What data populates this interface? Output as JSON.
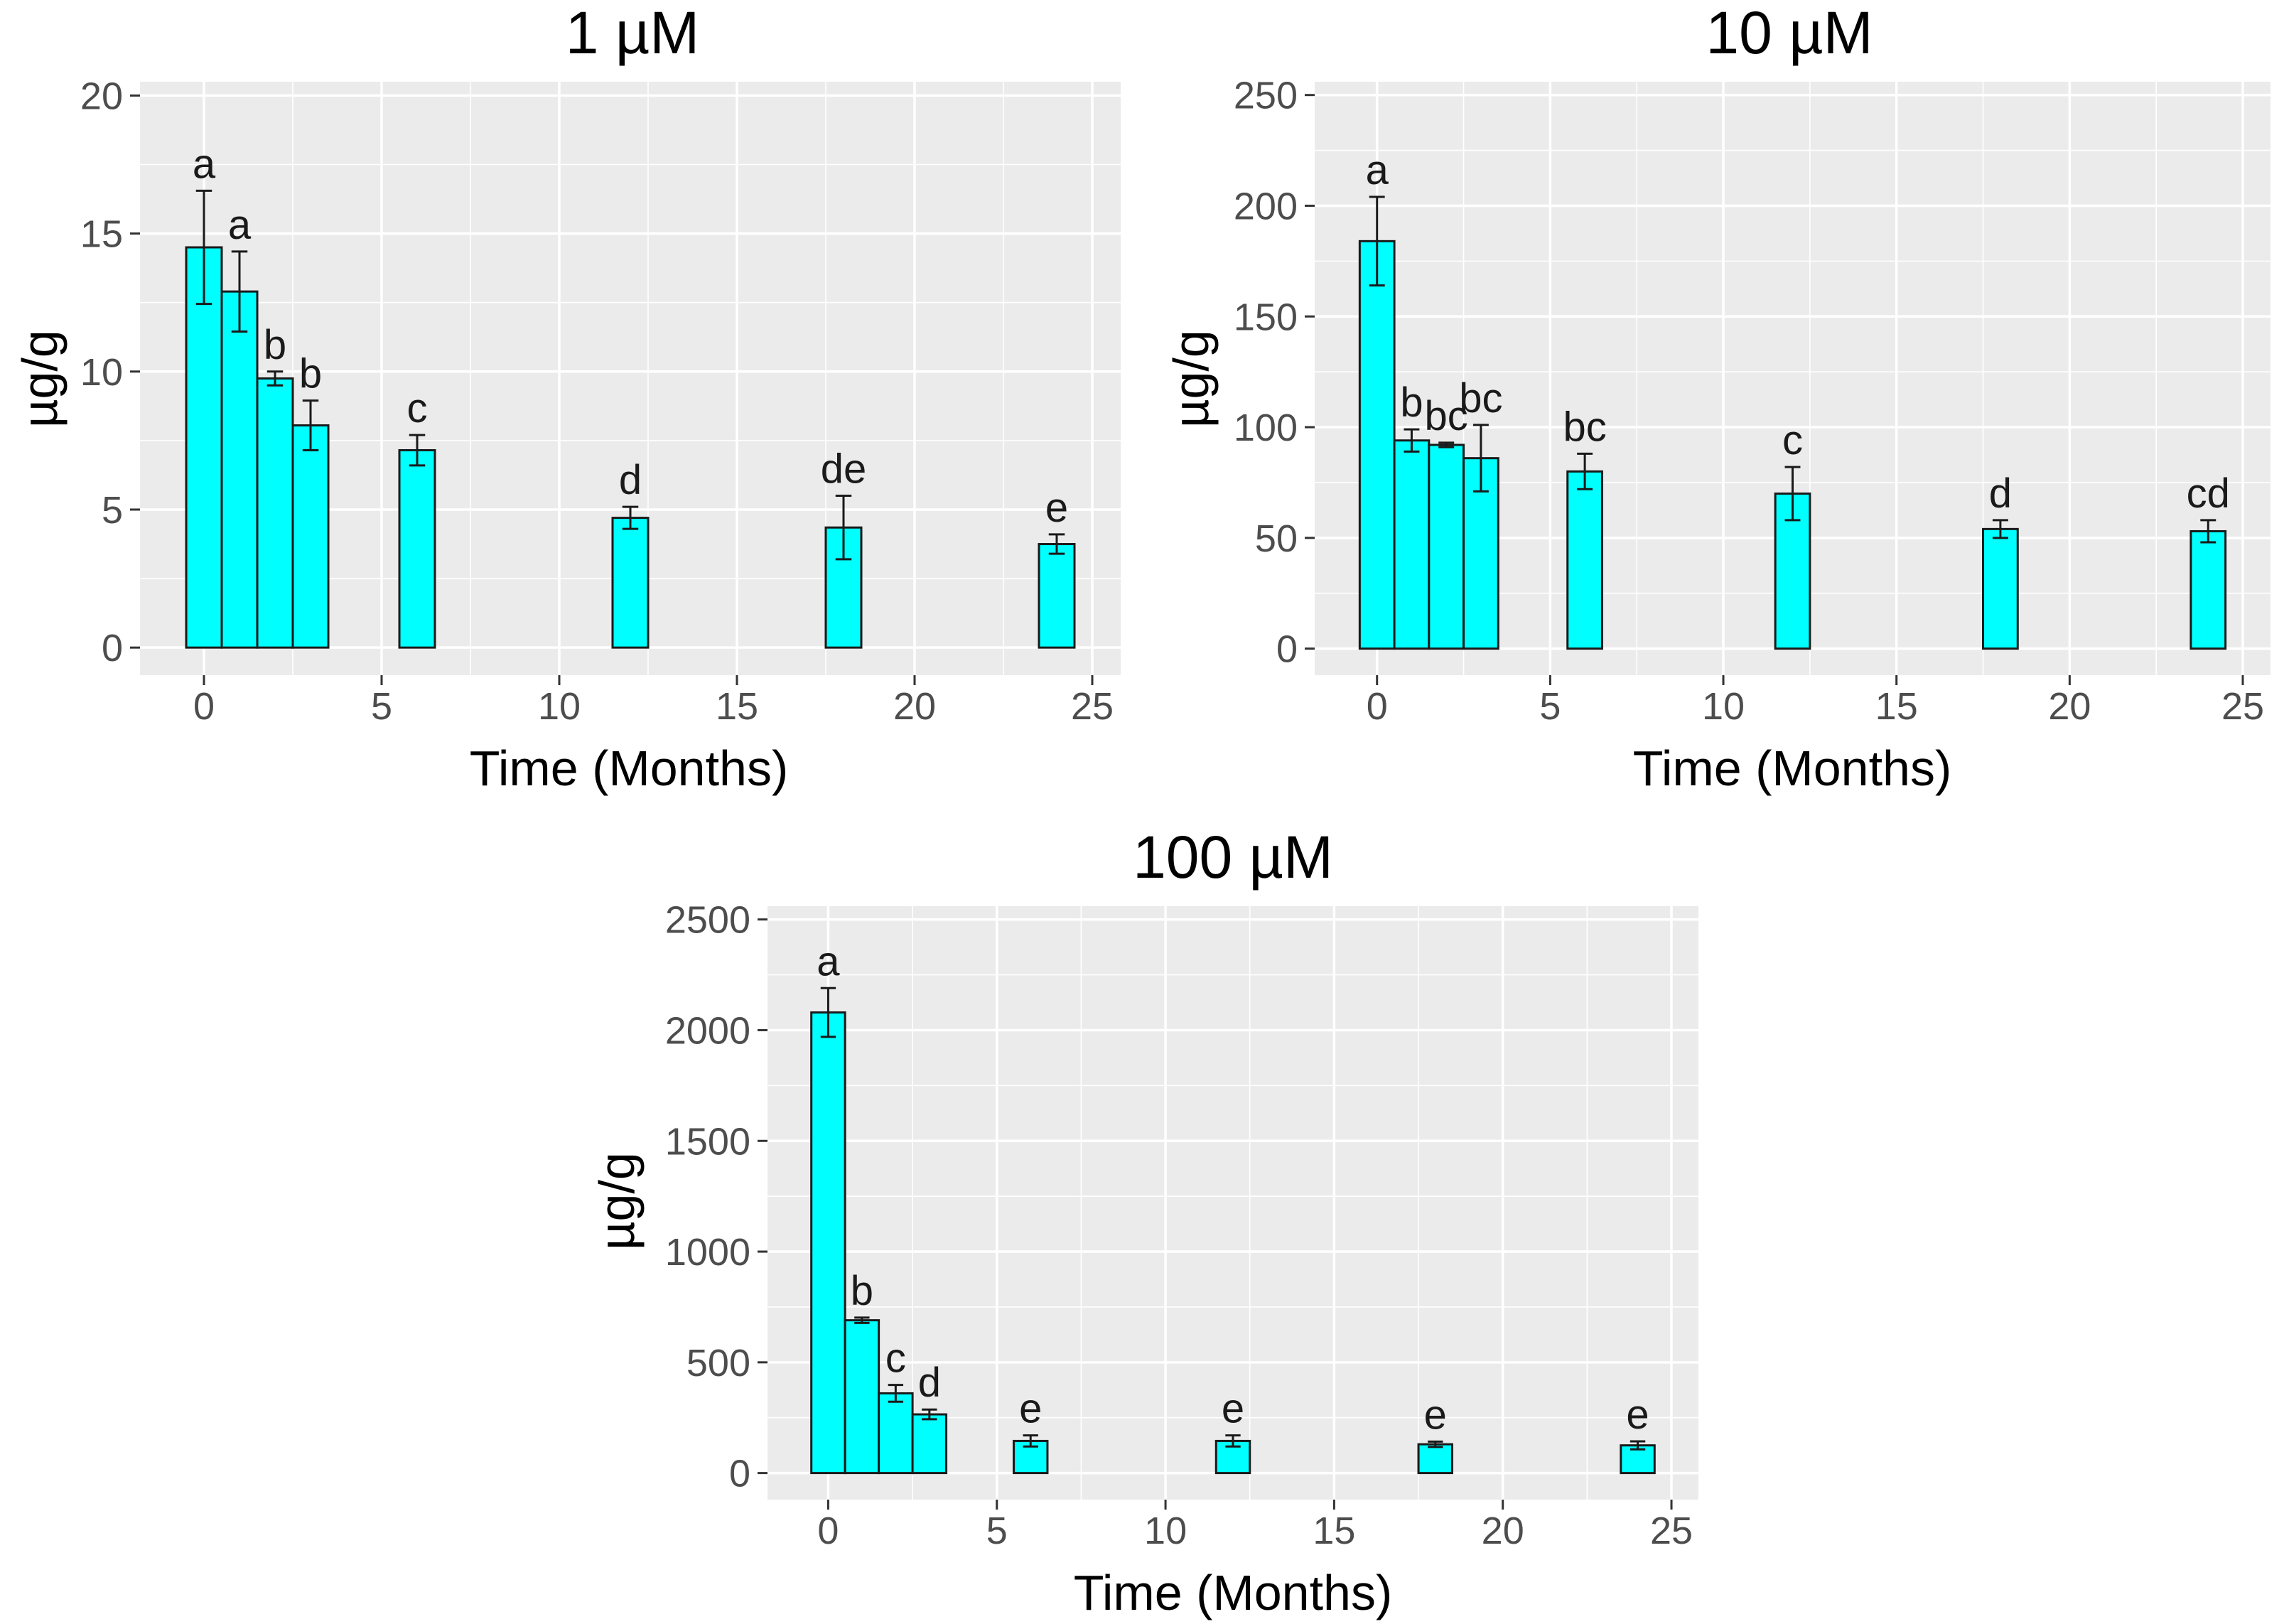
{
  "chart_data": [
    {
      "type": "bar",
      "title": "1 µM",
      "xlabel": "Time (Months)",
      "ylabel": "µg/g",
      "xlim": [
        -1.8,
        25.8
      ],
      "ylim": [
        -1,
        20.5
      ],
      "x_ticks": [
        0,
        5,
        10,
        15,
        20,
        25
      ],
      "y_ticks": [
        0,
        5,
        10,
        15,
        20
      ],
      "grid": true,
      "bar_color": "#00ffff",
      "x": [
        0,
        1,
        2,
        3,
        6,
        12,
        18,
        24
      ],
      "values": [
        14.5,
        12.9,
        9.75,
        8.05,
        7.15,
        4.7,
        4.35,
        3.75
      ],
      "errors": [
        2.05,
        1.45,
        0.25,
        0.9,
        0.55,
        0.4,
        1.15,
        0.35
      ],
      "significance": [
        "a",
        "a",
        "b",
        "b",
        "c",
        "d",
        "de",
        "e"
      ]
    },
    {
      "type": "bar",
      "title": "10 µM",
      "xlabel": "Time (Months)",
      "ylabel": "µg/g",
      "xlim": [
        -1.8,
        25.8
      ],
      "ylim": [
        -12,
        256
      ],
      "x_ticks": [
        0,
        5,
        10,
        15,
        20,
        25
      ],
      "y_ticks": [
        0,
        50,
        100,
        150,
        200,
        250
      ],
      "grid": true,
      "bar_color": "#00ffff",
      "x": [
        0,
        1,
        2,
        3,
        6,
        12,
        18,
        24
      ],
      "values": [
        184,
        94,
        92,
        86,
        80,
        70,
        54,
        53
      ],
      "errors": [
        20,
        5,
        1,
        15,
        8,
        12,
        4,
        5
      ],
      "significance": [
        "a",
        "b",
        "bc",
        "bc",
        "bc",
        "c",
        "d",
        "cd"
      ]
    },
    {
      "type": "bar",
      "title": "100 µM",
      "xlabel": "Time (Months)",
      "ylabel": "µg/g",
      "xlim": [
        -1.8,
        25.8
      ],
      "ylim": [
        -120,
        2560
      ],
      "x_ticks": [
        0,
        5,
        10,
        15,
        20,
        25
      ],
      "y_ticks": [
        0,
        500,
        1000,
        1500,
        2000,
        2500
      ],
      "grid": true,
      "bar_color": "#00ffff",
      "x": [
        0,
        1,
        2,
        3,
        6,
        12,
        18,
        24
      ],
      "values": [
        2080,
        690,
        360,
        265,
        145,
        145,
        130,
        125
      ],
      "errors": [
        110,
        12,
        38,
        22,
        25,
        25,
        12,
        18
      ],
      "significance": [
        "a",
        "b",
        "c",
        "d",
        "e",
        "e",
        "e",
        "e"
      ]
    }
  ]
}
